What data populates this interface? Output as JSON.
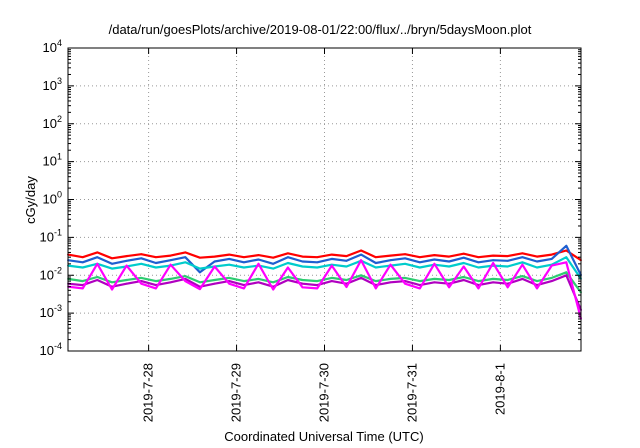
{
  "chart_data": {
    "type": "line",
    "title": "/data/run/goesPlots/archive/2019-08-01/22:00/flux/../bryn/5daysMoon.plot",
    "xlabel": "Coordinated Universal Time (UTC)",
    "ylabel": "cGy/day",
    "yscale": "log",
    "ylim": [
      0.0001,
      10000
    ],
    "xlim": [
      "2019-07-27 02:00",
      "2019-08-01 22:00"
    ],
    "x_ticks": [
      "2019-7-28",
      "2019-7-29",
      "2019-7-30",
      "2019-7-31",
      "2019-8-1"
    ],
    "y_ticks": [
      {
        "base": "10",
        "exp": "-4"
      },
      {
        "base": "10",
        "exp": "-3"
      },
      {
        "base": "10",
        "exp": "-2"
      },
      {
        "base": "10",
        "exp": "-1"
      },
      {
        "base": "10",
        "exp": "0"
      },
      {
        "base": "10",
        "exp": "1"
      },
      {
        "base": "10",
        "exp": "2"
      },
      {
        "base": "10",
        "exp": "3"
      },
      {
        "base": "10",
        "exp": "4"
      }
    ],
    "grid": true,
    "legend": "none",
    "x": [
      "2019-07-27 02:00",
      "2019-07-27 06:00",
      "2019-07-27 10:00",
      "2019-07-27 14:00",
      "2019-07-27 18:00",
      "2019-07-27 22:00",
      "2019-07-28 02:00",
      "2019-07-28 06:00",
      "2019-07-28 10:00",
      "2019-07-28 14:00",
      "2019-07-28 18:00",
      "2019-07-28 22:00",
      "2019-07-29 02:00",
      "2019-07-29 06:00",
      "2019-07-29 10:00",
      "2019-07-29 14:00",
      "2019-07-29 18:00",
      "2019-07-29 22:00",
      "2019-07-30 02:00",
      "2019-07-30 06:00",
      "2019-07-30 10:00",
      "2019-07-30 14:00",
      "2019-07-30 18:00",
      "2019-07-30 22:00",
      "2019-07-31 02:00",
      "2019-07-31 06:00",
      "2019-07-31 10:00",
      "2019-07-31 14:00",
      "2019-07-31 18:00",
      "2019-07-31 22:00",
      "2019-08-01 02:00",
      "2019-08-01 06:00",
      "2019-08-01 10:00",
      "2019-08-01 14:00",
      "2019-08-01 18:00",
      "2019-08-01 22:00"
    ],
    "series": [
      {
        "color": "#ff0000",
        "values": [
          0.035,
          0.03,
          0.04,
          0.028,
          0.032,
          0.036,
          0.03,
          0.033,
          0.04,
          0.029,
          0.031,
          0.035,
          0.03,
          0.034,
          0.029,
          0.038,
          0.031,
          0.03,
          0.035,
          0.032,
          0.045,
          0.03,
          0.033,
          0.036,
          0.03,
          0.034,
          0.031,
          0.037,
          0.03,
          0.033,
          0.032,
          0.038,
          0.031,
          0.035,
          0.045,
          0.025
        ]
      },
      {
        "color": "#1f5fd0",
        "values": [
          0.025,
          0.022,
          0.03,
          0.02,
          0.024,
          0.028,
          0.021,
          0.025,
          0.03,
          0.012,
          0.023,
          0.027,
          0.022,
          0.026,
          0.02,
          0.03,
          0.023,
          0.022,
          0.027,
          0.024,
          0.035,
          0.021,
          0.025,
          0.028,
          0.022,
          0.026,
          0.023,
          0.029,
          0.022,
          0.025,
          0.024,
          0.03,
          0.023,
          0.027,
          0.06,
          0.01
        ]
      },
      {
        "color": "#00cccc",
        "values": [
          0.018,
          0.016,
          0.02,
          0.015,
          0.017,
          0.02,
          0.016,
          0.018,
          0.022,
          0.015,
          0.017,
          0.019,
          0.016,
          0.018,
          0.015,
          0.021,
          0.017,
          0.016,
          0.019,
          0.017,
          0.024,
          0.016,
          0.018,
          0.02,
          0.016,
          0.019,
          0.017,
          0.021,
          0.016,
          0.018,
          0.017,
          0.022,
          0.016,
          0.019,
          0.03,
          0.008
        ]
      },
      {
        "color": "#2ecc71",
        "values": [
          0.008,
          0.007,
          0.009,
          0.0065,
          0.0075,
          0.0085,
          0.007,
          0.008,
          0.0095,
          0.0065,
          0.0075,
          0.0085,
          0.007,
          0.008,
          0.0065,
          0.009,
          0.0075,
          0.007,
          0.0085,
          0.0075,
          0.01,
          0.007,
          0.008,
          0.0085,
          0.007,
          0.008,
          0.0075,
          0.009,
          0.007,
          0.008,
          0.0075,
          0.0095,
          0.007,
          0.0085,
          0.012,
          0.0035
        ]
      },
      {
        "color": "#b000c0",
        "values": [
          0.006,
          0.0055,
          0.0075,
          0.005,
          0.006,
          0.007,
          0.0055,
          0.0065,
          0.008,
          0.005,
          0.006,
          0.007,
          0.0055,
          0.0065,
          0.005,
          0.0075,
          0.006,
          0.0055,
          0.007,
          0.006,
          0.0085,
          0.0055,
          0.0065,
          0.007,
          0.0055,
          0.0065,
          0.006,
          0.0075,
          0.0055,
          0.0065,
          0.006,
          0.008,
          0.0055,
          0.007,
          0.01,
          0.0012
        ]
      },
      {
        "color": "#ff00ff",
        "values": [
          0.005,
          0.0045,
          0.02,
          0.0042,
          0.018,
          0.006,
          0.0045,
          0.019,
          0.007,
          0.0043,
          0.017,
          0.006,
          0.0045,
          0.02,
          0.0042,
          0.016,
          0.0048,
          0.0045,
          0.018,
          0.0049,
          0.025,
          0.0045,
          0.019,
          0.006,
          0.0045,
          0.02,
          0.0048,
          0.017,
          0.0045,
          0.021,
          0.0048,
          0.019,
          0.0045,
          0.018,
          0.022,
          0.0007
        ]
      }
    ]
  }
}
